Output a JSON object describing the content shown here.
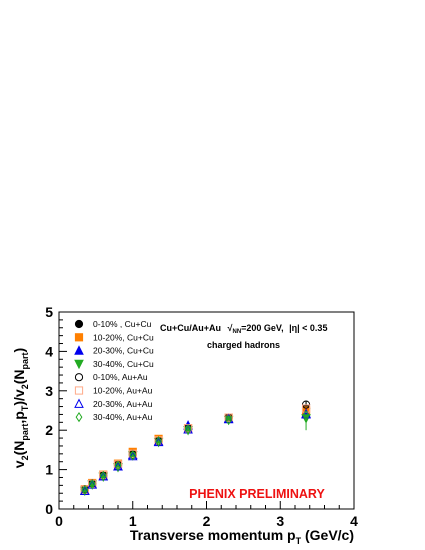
{
  "chart_data": {
    "type": "scatter",
    "ylabel_parts": [
      "v",
      "2",
      "(N",
      "part",
      ",p",
      "T",
      ")/v",
      "2",
      "(N",
      "part",
      ")"
    ],
    "xlabel_parts": [
      "Transverse momentum p",
      "T",
      " (GeV/c)"
    ],
    "xlim": [
      0,
      4
    ],
    "ylim": [
      0,
      5
    ],
    "x_ticks": [
      "0",
      "1",
      "2",
      "3",
      "4"
    ],
    "y_ticks": [
      "0",
      "1",
      "2",
      "3",
      "4",
      "5"
    ],
    "x_tick_values": [
      0,
      1,
      2,
      3,
      4
    ],
    "y_tick_values": [
      0,
      1,
      2,
      3,
      4,
      5
    ],
    "annotation": {
      "prefix": "Cu+Cu/Au+Au",
      "sqrt_sub": "NN",
      "energy": "=200 GeV,",
      "eta": "|η| < 0.35",
      "line2": "charged hadrons"
    },
    "preliminary_label": "PHENIX PRELIMINARY",
    "legend_position": "top-left",
    "x": [
      0.35,
      0.45,
      0.6,
      0.8,
      1.0,
      1.35,
      1.75,
      2.3,
      3.35
    ],
    "series": [
      {
        "name": "0-10% , Cu+Cu",
        "marker": "circle-filled",
        "color": "#000000",
        "values": [
          0.5,
          0.65,
          0.85,
          1.1,
          1.4,
          1.75,
          2.05,
          2.3,
          2.55
        ]
      },
      {
        "name": "10-20%, Cu+Cu",
        "marker": "square-filled",
        "color": "#ff8000",
        "values": [
          0.5,
          0.66,
          0.87,
          1.15,
          1.45,
          1.78,
          2.05,
          2.32,
          2.5
        ]
      },
      {
        "name": "20-30%, Cu+Cu",
        "marker": "triangle-up-filled",
        "color": "#0000ee",
        "values": [
          0.47,
          0.63,
          0.83,
          1.08,
          1.38,
          1.72,
          2.12,
          2.3,
          2.42
        ]
      },
      {
        "name": "30-40%, Cu+Cu",
        "marker": "triangle-down-filled",
        "color": "#22aa22",
        "values": [
          0.46,
          0.62,
          0.82,
          1.06,
          1.36,
          1.7,
          2.0,
          2.26,
          2.3
        ]
      },
      {
        "name": "0-10%,  Au+Au",
        "marker": "circle-open",
        "color": "#000000",
        "values": [
          0.5,
          0.64,
          0.85,
          1.12,
          1.38,
          1.72,
          2.05,
          2.32,
          2.65
        ]
      },
      {
        "name": "10-20%, Au+Au",
        "marker": "square-open",
        "color": "#ffaa88",
        "values": [
          0.49,
          0.64,
          0.86,
          1.13,
          1.4,
          1.74,
          2.05,
          2.32,
          2.55
        ]
      },
      {
        "name": "20-30%, Au+Au",
        "marker": "triangle-up-open",
        "color": "#0000ee",
        "values": [
          0.46,
          0.62,
          0.83,
          1.08,
          1.34,
          1.7,
          2.02,
          2.28,
          2.4
        ]
      },
      {
        "name": "30-40%, Au+Au",
        "marker": "diamond-open",
        "color": "#22aa22",
        "values": [
          0.48,
          0.63,
          0.84,
          1.1,
          1.36,
          1.72,
          2.02,
          2.26,
          2.38
        ]
      }
    ],
    "error_bars": [
      {
        "x": 3.35,
        "low": 2.0,
        "high": 2.75,
        "color": "#22aa22"
      },
      {
        "x": 3.35,
        "low": 2.4,
        "high": 2.75,
        "color": "#000000"
      }
    ]
  }
}
